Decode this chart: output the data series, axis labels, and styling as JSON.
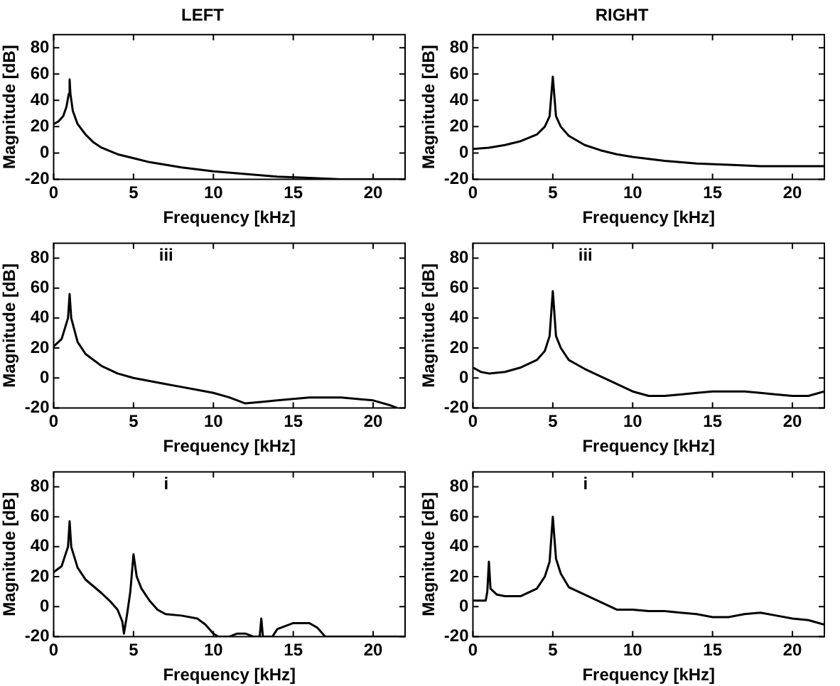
{
  "chart_data": [
    {
      "type": "line",
      "title": "LEFT",
      "xlabel": "Frequency [kHz]",
      "ylabel": "Magnitude [dB]",
      "xlim": [
        0,
        22
      ],
      "xticks": [
        0,
        5,
        10,
        15,
        20
      ],
      "ylim": [
        -20,
        90
      ],
      "yticks": [
        -20,
        0,
        20,
        40,
        60,
        80
      ],
      "color": "#000000",
      "x": [
        0,
        0.3,
        0.6,
        0.8,
        0.95,
        1,
        1.05,
        1.2,
        1.5,
        2,
        2.5,
        3,
        4,
        5,
        6,
        7,
        8,
        10,
        12,
        14,
        16,
        18,
        20,
        22
      ],
      "values": [
        22,
        24,
        28,
        35,
        45,
        56,
        45,
        32,
        22,
        14,
        8,
        4,
        -1,
        -4,
        -7,
        -9,
        -11,
        -14,
        -16,
        -18,
        -19,
        -20,
        -20,
        -20
      ]
    },
    {
      "type": "line",
      "title": "RIGHT",
      "xlabel": "Frequency [kHz]",
      "ylabel": "Magnitude [dB]",
      "xlim": [
        0,
        22
      ],
      "xticks": [
        0,
        5,
        10,
        15,
        20
      ],
      "ylim": [
        -20,
        90
      ],
      "yticks": [
        -20,
        0,
        20,
        40,
        60,
        80
      ],
      "color": "#000000",
      "x": [
        0,
        1,
        2,
        3,
        4,
        4.5,
        4.8,
        5,
        5.2,
        5.5,
        6,
        7,
        8,
        9,
        10,
        12,
        14,
        16,
        18,
        20,
        22
      ],
      "values": [
        3,
        4,
        6,
        9,
        14,
        20,
        28,
        58,
        28,
        20,
        13,
        6,
        2,
        -1,
        -3,
        -6,
        -8,
        -9,
        -10,
        -10,
        -10
      ]
    },
    {
      "type": "line",
      "annotations": [
        "iii"
      ],
      "xlabel": "Frequency [kHz]",
      "ylabel": "Magnitude [dB]",
      "xlim": [
        0,
        22
      ],
      "xticks": [
        0,
        5,
        10,
        15,
        20
      ],
      "ylim": [
        -20,
        90
      ],
      "yticks": [
        -20,
        0,
        20,
        40,
        60,
        80
      ],
      "color": "#000000",
      "x": [
        0,
        0.5,
        0.9,
        1,
        1.1,
        1.5,
        2,
        3,
        4,
        5,
        6,
        7,
        8,
        9,
        10,
        11,
        12,
        13,
        14,
        15,
        16,
        17,
        18,
        19,
        20,
        21,
        21.5
      ],
      "values": [
        21,
        26,
        40,
        56,
        40,
        24,
        16,
        8,
        3,
        0,
        -2,
        -4,
        -6,
        -8,
        -10,
        -13,
        -17,
        -16,
        -15,
        -14,
        -13,
        -13,
        -13,
        -14,
        -15,
        -18,
        -20
      ]
    },
    {
      "type": "line",
      "annotations": [
        "iii"
      ],
      "xlabel": "Frequency [kHz]",
      "ylabel": "Magnitude [dB]",
      "xlim": [
        0,
        22
      ],
      "xticks": [
        0,
        5,
        10,
        15,
        20
      ],
      "ylim": [
        -20,
        90
      ],
      "yticks": [
        -20,
        0,
        20,
        40,
        60,
        80
      ],
      "color": "#000000",
      "x": [
        0,
        0.5,
        1,
        2,
        3,
        4,
        4.5,
        4.8,
        5,
        5.2,
        5.5,
        6,
        7,
        8,
        9,
        10,
        11,
        12,
        13,
        14,
        15,
        16,
        17,
        18,
        19,
        20,
        21,
        22
      ],
      "values": [
        7,
        4,
        3,
        4,
        7,
        12,
        18,
        28,
        58,
        28,
        20,
        12,
        6,
        1,
        -4,
        -9,
        -12,
        -12,
        -11,
        -10,
        -9,
        -9,
        -9,
        -10,
        -11,
        -12,
        -12,
        -9
      ]
    },
    {
      "type": "line",
      "annotations": [
        "i"
      ],
      "xlabel": "Frequency [kHz]",
      "ylabel": "Magnitude [dB]",
      "xlim": [
        0,
        22
      ],
      "xticks": [
        0,
        5,
        10,
        15,
        20
      ],
      "ylim": [
        -20,
        90
      ],
      "yticks": [
        -20,
        0,
        20,
        40,
        60,
        80
      ],
      "color": "#000000",
      "x": [
        0,
        0.5,
        0.9,
        1,
        1.1,
        1.5,
        2,
        3,
        3.5,
        4,
        4.3,
        4.4,
        4.6,
        4.8,
        5,
        5.2,
        5.5,
        6,
        6.5,
        7,
        8,
        9,
        9.5,
        10,
        10.3,
        11,
        11.5,
        12,
        12.5,
        12.9,
        13,
        13.1,
        13.7,
        14,
        15,
        16,
        16.5,
        17,
        22
      ],
      "values": [
        23,
        27,
        40,
        57,
        40,
        26,
        18,
        9,
        4,
        -2,
        -10,
        -18,
        -5,
        10,
        35,
        20,
        12,
        4,
        -2,
        -5,
        -6,
        -8,
        -12,
        -18,
        -20,
        -20,
        -18,
        -18,
        -20,
        -20,
        -8,
        -20,
        -20,
        -15,
        -11,
        -11,
        -14,
        -20,
        -20
      ]
    },
    {
      "type": "line",
      "annotations": [
        "i"
      ],
      "xlabel": "Frequency [kHz]",
      "ylabel": "Magnitude [dB]",
      "xlim": [
        0,
        22
      ],
      "xticks": [
        0,
        5,
        10,
        15,
        20
      ],
      "ylim": [
        -20,
        90
      ],
      "yticks": [
        -20,
        0,
        20,
        40,
        60,
        80
      ],
      "color": "#000000",
      "x": [
        0,
        0.8,
        0.9,
        1,
        1.1,
        1.5,
        2,
        3,
        4,
        4.5,
        4.8,
        5,
        5.2,
        5.5,
        6,
        7,
        8,
        9,
        10,
        11,
        12,
        13,
        14,
        15,
        16,
        17,
        18,
        19,
        20,
        21,
        22
      ],
      "values": [
        4,
        4,
        10,
        30,
        12,
        8,
        7,
        7,
        12,
        20,
        30,
        60,
        32,
        22,
        13,
        8,
        3,
        -2,
        -2,
        -3,
        -3,
        -4,
        -5,
        -7,
        -7,
        -5,
        -4,
        -6,
        -8,
        -9,
        -12
      ]
    }
  ]
}
